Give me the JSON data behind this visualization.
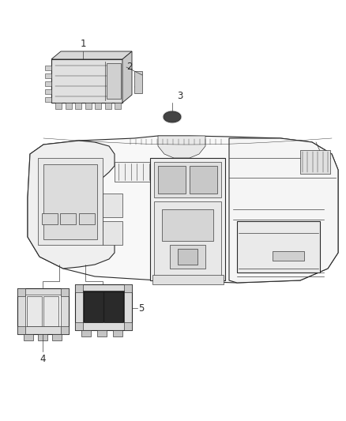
{
  "background_color": "#ffffff",
  "figsize": [
    4.38,
    5.33
  ],
  "dpi": 100,
  "line_color": "#2a2a2a",
  "label_fontsize": 8.5,
  "lw_main": 0.8,
  "lw_thin": 0.45,
  "lw_heavy": 1.2
}
